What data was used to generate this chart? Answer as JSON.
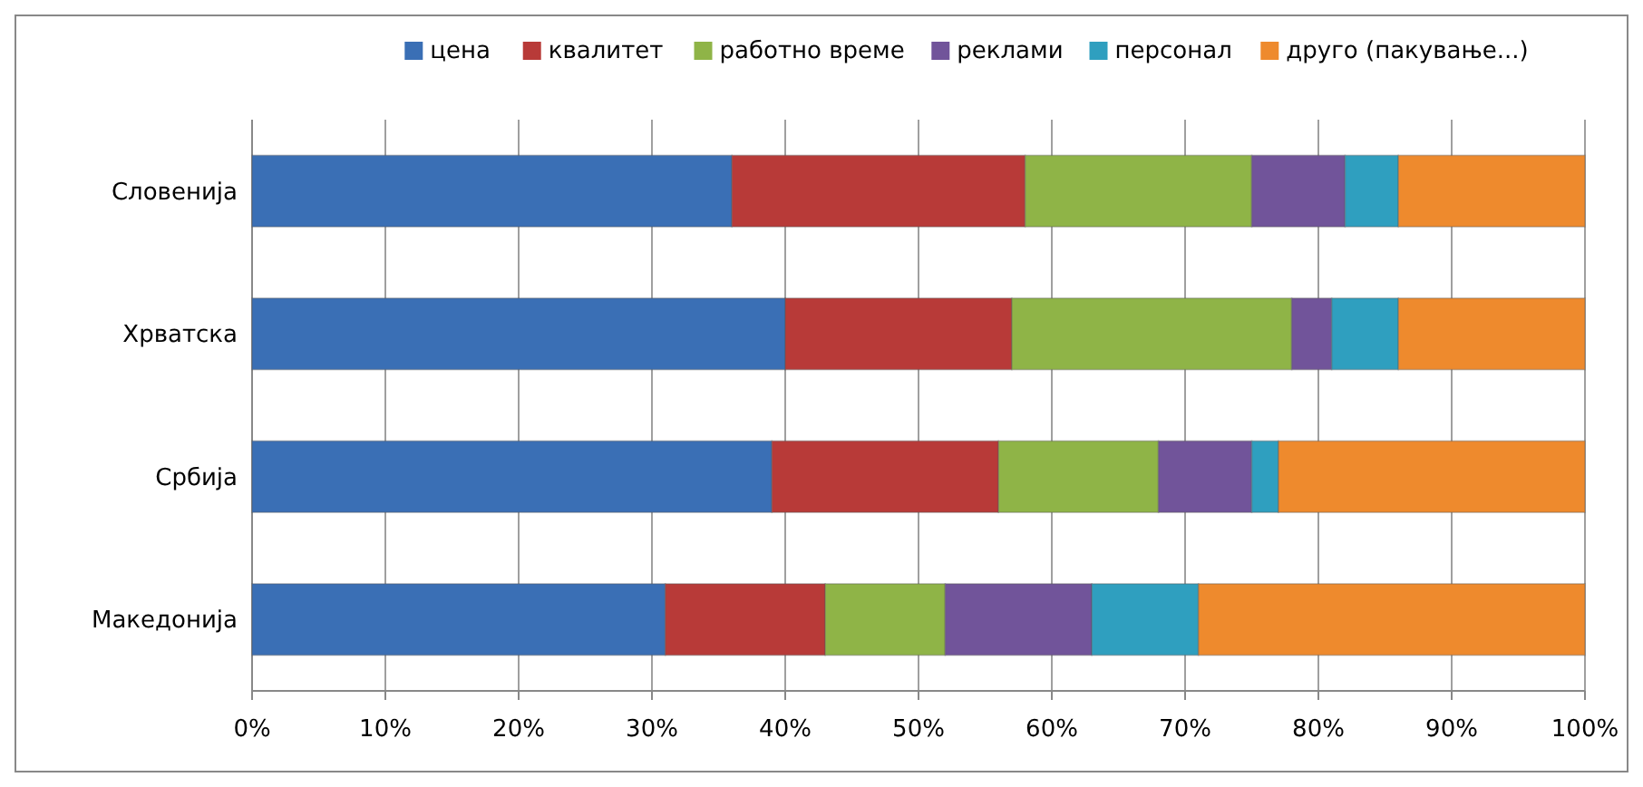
{
  "chart_data": {
    "type": "bar",
    "orientation": "horizontal",
    "stacked": true,
    "categories": [
      "Словенија",
      "Хрватска",
      "Србија",
      "Македонија"
    ],
    "series": [
      {
        "name": "цена",
        "color": "#3a6fb5",
        "values": [
          36,
          40,
          39,
          31
        ]
      },
      {
        "name": "квалитет",
        "color": "#b83a38",
        "values": [
          22,
          17,
          17,
          12
        ]
      },
      {
        "name": "работно време",
        "color": "#8fb447",
        "values": [
          17,
          21,
          12,
          9
        ]
      },
      {
        "name": "реклами",
        "color": "#71549a",
        "values": [
          7,
          3,
          7,
          11
        ]
      },
      {
        "name": "персонал",
        "color": "#2f9fbf",
        "values": [
          4,
          5,
          2,
          8
        ]
      },
      {
        "name": "друго (пакување...)",
        "color": "#ee8a2d",
        "values": [
          14,
          14,
          23,
          29
        ]
      }
    ],
    "xlim": [
      0,
      100
    ],
    "xticks": [
      {
        "value": 0,
        "label": "0%"
      },
      {
        "value": 10,
        "label": "10%"
      },
      {
        "value": 20,
        "label": "20%"
      },
      {
        "value": 30,
        "label": "30%"
      },
      {
        "value": 40,
        "label": "40%"
      },
      {
        "value": 50,
        "label": "50%"
      },
      {
        "value": 60,
        "label": "60%"
      },
      {
        "value": 70,
        "label": "70%"
      },
      {
        "value": 80,
        "label": "80%"
      },
      {
        "value": 90,
        "label": "90%"
      },
      {
        "value": 100,
        "label": "100%"
      }
    ],
    "grid": "x",
    "legend": "top"
  }
}
